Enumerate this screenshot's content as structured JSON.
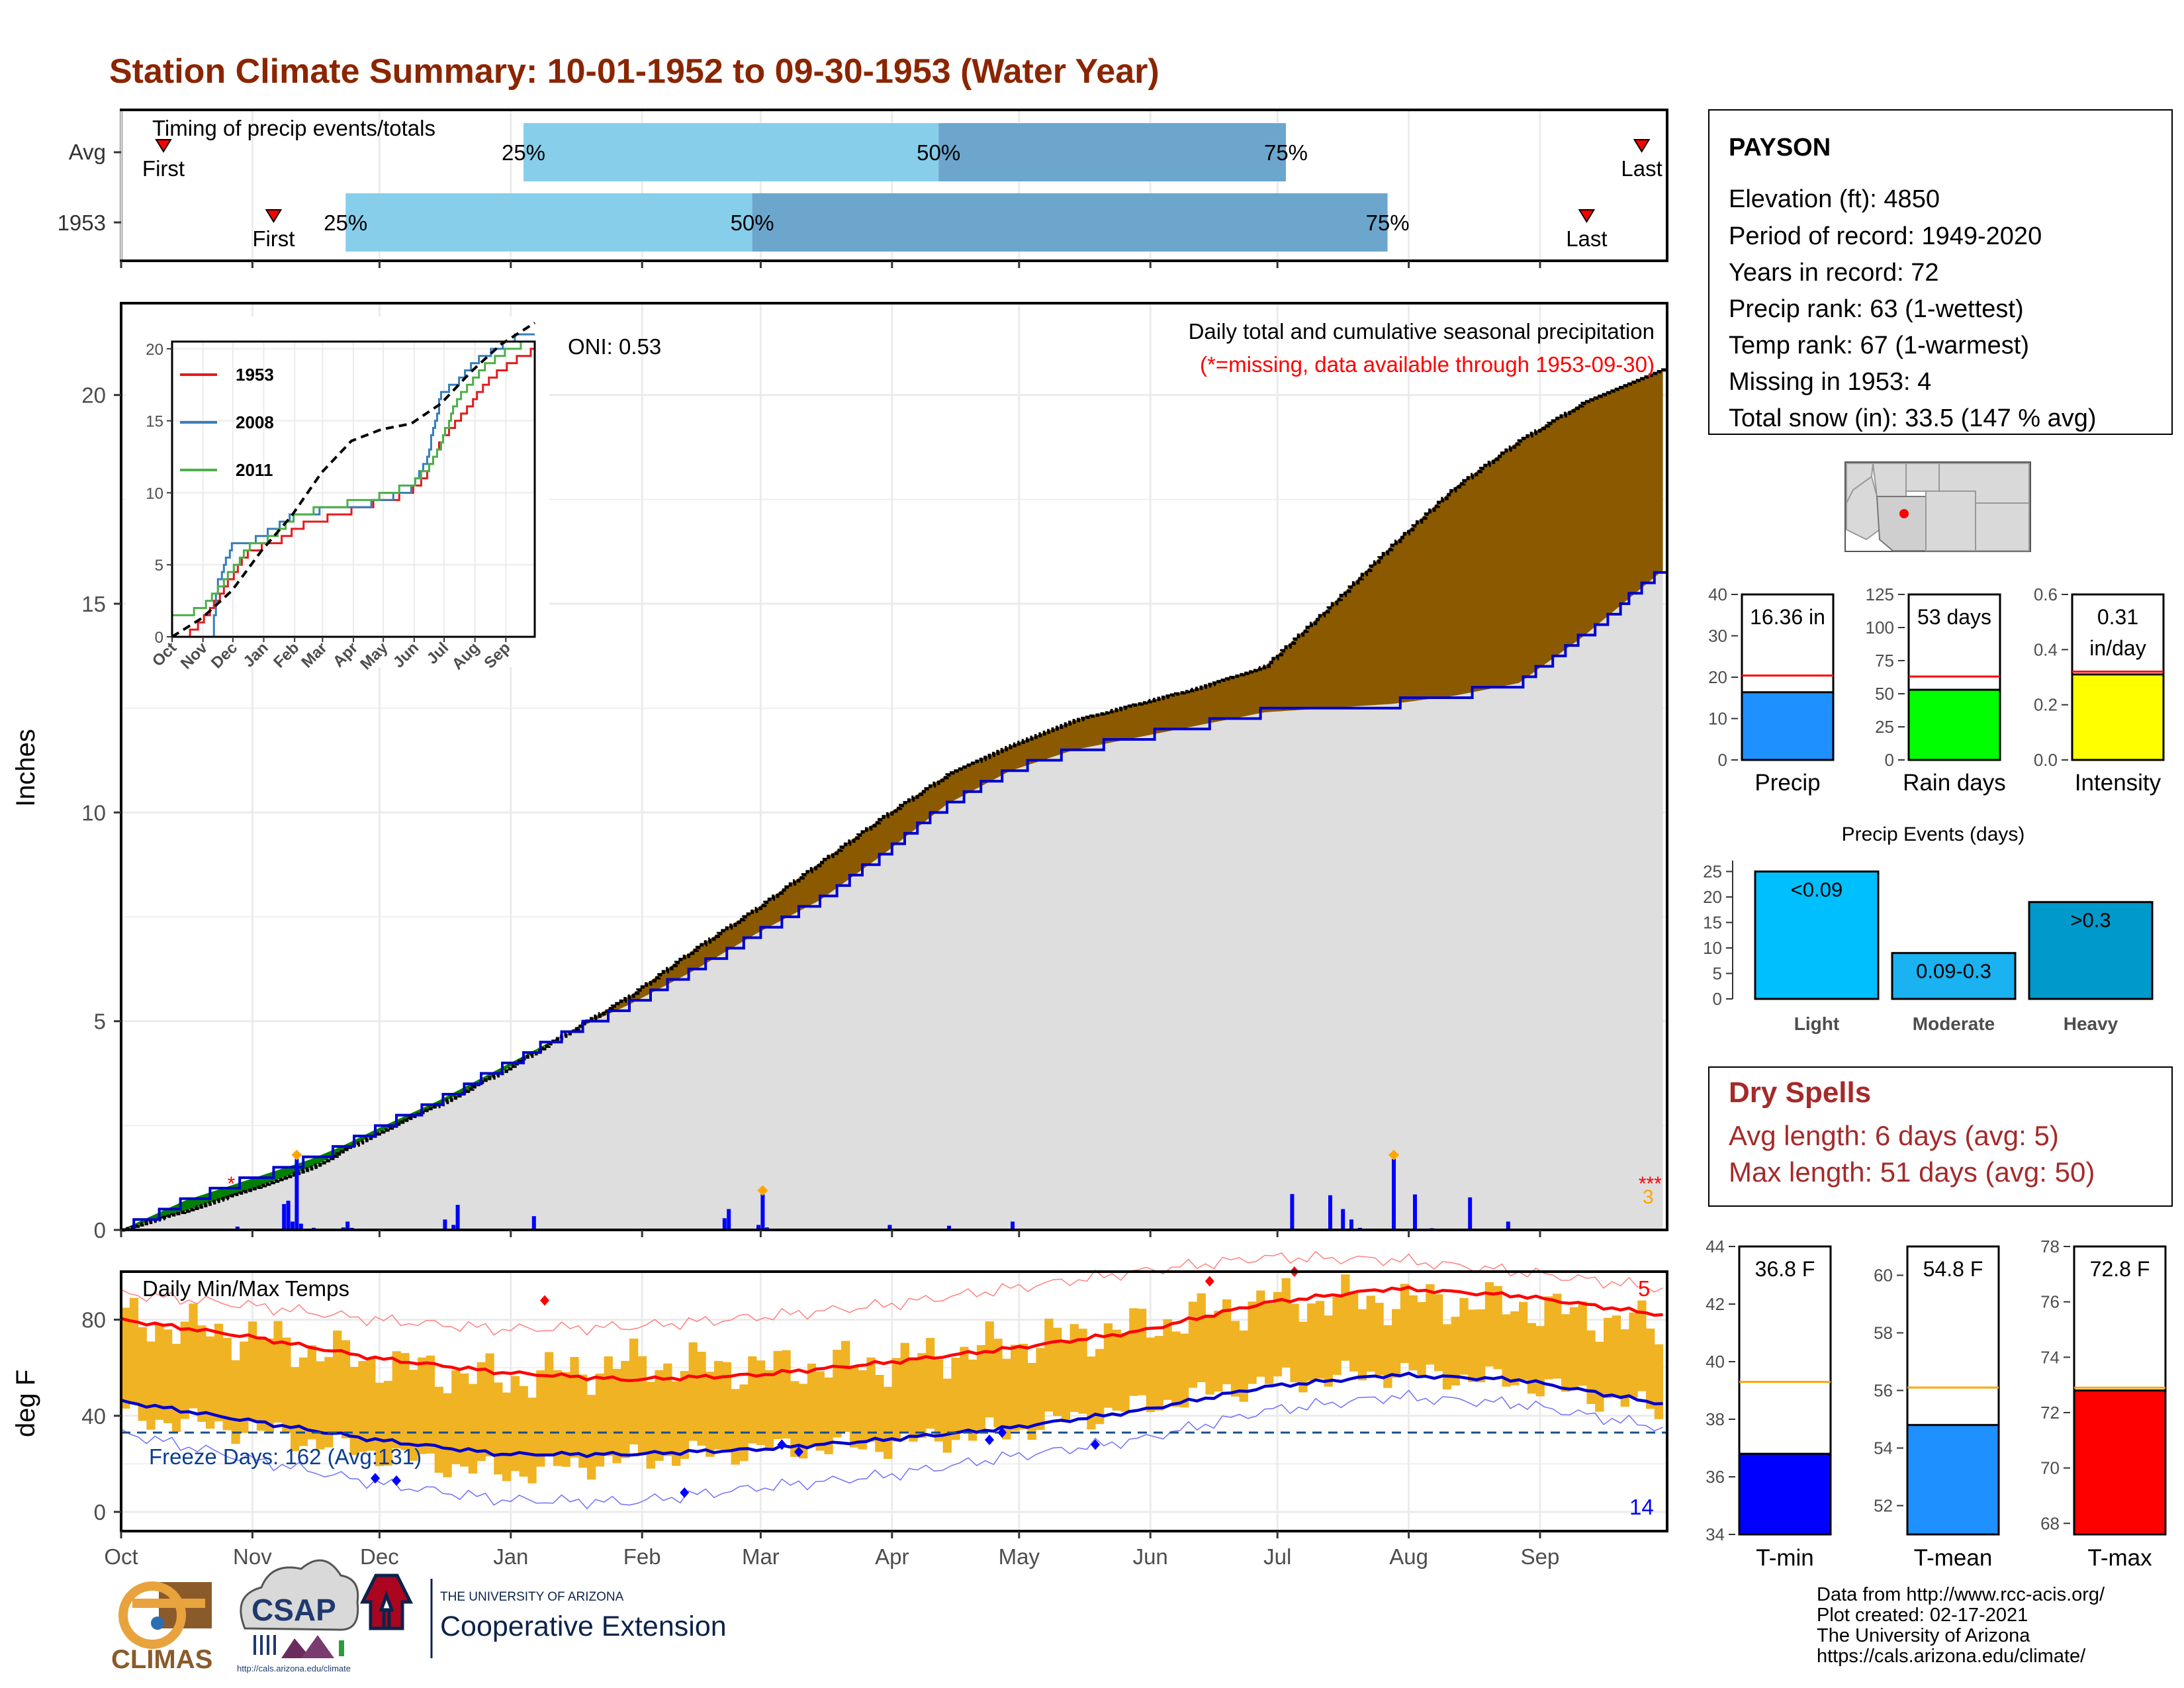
{
  "title": "Station Climate Summary: 10-01-1952 to 09-30-1953 (Water Year)",
  "colors": {
    "title": "#8b2500",
    "light_bar": "#87ceeb",
    "dark_bar": "#6ca6cd",
    "precip_fill": "#8b5a00",
    "ahead_fill": "#008000",
    "avg_fill": "#dedede",
    "daily_bar": "#0000ff",
    "temp_bar": "#f0b323",
    "red_line": "#ff0000",
    "blue_line": "#0000cd",
    "dry_spell": "#a52a2a"
  },
  "timing": {
    "label": "Timing of precip events/totals",
    "rows": [
      {
        "name": "Avg",
        "first_label": "First",
        "last_label": "Last",
        "first_day": 10,
        "last_day": 359,
        "p25_day": 95,
        "p50_day": 193,
        "p75_day": 275,
        "pct_labels": [
          "25%",
          "50%",
          "75%"
        ]
      },
      {
        "name": "1953",
        "first_label": "First",
        "last_label": "Last",
        "first_day": 36,
        "last_day": 346,
        "p25_day": 53,
        "p50_day": 149,
        "p75_day": 299,
        "pct_labels": [
          "25%",
          "50%",
          "75%"
        ]
      }
    ]
  },
  "main_plot": {
    "ylabel": "Inches",
    "annotation_title": "Daily total and cumulative seasonal precipitation",
    "annotation_missing": "(*=missing, data available through 1953-09-30)",
    "oni": "ONI: 0.53",
    "y_ticks": [
      "0",
      "5",
      "10",
      "15",
      "20"
    ],
    "ymax": 22.2,
    "missing_count": "3"
  },
  "x_months": [
    "Oct",
    "Nov",
    "Dec",
    "Jan",
    "Feb",
    "Mar",
    "Apr",
    "May",
    "Jun",
    "Jul",
    "Aug",
    "Sep"
  ],
  "inset": {
    "series": [
      {
        "name": "1953",
        "color": "#e41a1c"
      },
      {
        "name": "2008",
        "color": "#377eb8"
      },
      {
        "name": "2011",
        "color": "#4daf4a"
      }
    ],
    "y_ticks": [
      "0",
      "5",
      "10",
      "15",
      "20"
    ],
    "x_ticks": [
      "Oct",
      "Nov",
      "Dec",
      "Jan",
      "Feb",
      "Mar",
      "Apr",
      "May",
      "Jun",
      "Jul",
      "Aug",
      "Sep"
    ]
  },
  "temp_plot": {
    "label": "Daily Min/Max Temps",
    "ylabel": "deg F",
    "freeze": "Freeze Days: 162 (Avg:131)",
    "y_ticks": [
      "0",
      "40",
      "80"
    ],
    "max_count": "5",
    "min_count": "14"
  },
  "station": {
    "name": "PAYSON",
    "lines": [
      "Elevation (ft): 4850",
      "Period of record: 1949-2020",
      "Years in record: 72",
      "Precip rank: 63 (1-wettest)",
      "Temp rank: 67 (1-warmest)",
      "Missing in 1953: 4",
      "Total snow (in): 33.5 (147 % avg)"
    ]
  },
  "summary_bars": [
    {
      "label": "Precip",
      "value_text": "16.36 in",
      "value": 16.36,
      "avg": 20.4,
      "ymax": 40,
      "ticks": [
        "0",
        "10",
        "20",
        "30",
        "40"
      ],
      "color": "#1e90ff"
    },
    {
      "label": "Rain days",
      "value_text": "53 days",
      "value": 53,
      "avg": 63,
      "ymax": 125,
      "ticks": [
        "0",
        "25",
        "50",
        "75",
        "100",
        "125"
      ],
      "color": "#00ff00"
    },
    {
      "label": "Intensity",
      "value_text": "0.31",
      "value_text2": "in/day",
      "value": 0.31,
      "avg": 0.32,
      "ymax": 0.6,
      "ticks": [
        "0.0",
        "0.2",
        "0.4",
        "0.6"
      ],
      "color": "#ffff00"
    }
  ],
  "events": {
    "title": "Precip Events (days)",
    "ticks": [
      "0",
      "5",
      "10",
      "15",
      "20",
      "25"
    ],
    "bars": [
      {
        "label": "Light",
        "text": "<0.09",
        "value": 25,
        "color": "#00bfff"
      },
      {
        "label": "Moderate",
        "text": "0.09-0.3",
        "value": 9,
        "color": "#1ab2f0"
      },
      {
        "label": "Heavy",
        "text": ">0.3",
        "value": 19,
        "color": "#0099cc"
      }
    ]
  },
  "dry_spells": {
    "title": "Dry Spells",
    "line1": "Avg length: 6 days (avg: 5)",
    "line2": "Max length: 51 days (avg: 50)"
  },
  "temp_bars": [
    {
      "label": "T-min",
      "value_text": "36.8 F",
      "value": 36.8,
      "avg": 39.3,
      "ymin": 34,
      "ymax": 44,
      "ticks": [
        "34",
        "36",
        "38",
        "40",
        "42",
        "44"
      ],
      "color": "#0000ff"
    },
    {
      "label": "T-mean",
      "value_text": "54.8 F",
      "value": 54.8,
      "avg": 56.1,
      "ymin": 51,
      "ymax": 61,
      "ticks": [
        "52",
        "54",
        "56",
        "58",
        "60"
      ],
      "color": "#1e90ff"
    },
    {
      "label": "T-max",
      "value_text": "72.8 F",
      "value": 72.8,
      "avg": 72.9,
      "ymin": 67.6,
      "ymax": 78,
      "ticks": [
        "68",
        "70",
        "72",
        "74",
        "76",
        "78"
      ],
      "color": "#ff0000"
    }
  ],
  "credits": [
    "Data from http://www.rcc-acis.org/",
    "Plot created: 02-17-2021",
    "The University of Arizona",
    "https://cals.arizona.edu/climate/"
  ],
  "logos": {
    "climas": "CLIMAS",
    "csap": "CSAP",
    "csap_url": "http://cals.arizona.edu/climate",
    "ua_small": "THE UNIVERSITY OF ARIZONA",
    "ua_big": "Cooperative Extension"
  },
  "chart_data": [
    {
      "type": "area",
      "title": "Daily total and cumulative seasonal precipitation",
      "ylabel": "Inches",
      "x_unit": "day of water year (0 = Oct 1)",
      "ylim": [
        0,
        22.2
      ],
      "cumulative_1953": {
        "x": [
          0,
          15,
          30,
          45,
          52,
          60,
          75,
          90,
          105,
          120,
          135,
          150,
          165,
          180,
          195,
          210,
          225,
          240,
          255,
          270,
          285,
          300,
          315,
          330,
          345,
          364
        ],
        "y": [
          0,
          0.7,
          1.2,
          1.7,
          2.0,
          2.4,
          3.1,
          3.9,
          4.7,
          5.4,
          6.2,
          7.1,
          7.9,
          9.0,
          10.2,
          11.0,
          11.5,
          11.8,
          12.1,
          12.4,
          12.5,
          12.6,
          12.8,
          13.1,
          14.2,
          15.8
        ]
      },
      "cumulative_avg": {
        "x": [
          0,
          15,
          30,
          45,
          60,
          75,
          90,
          105,
          120,
          135,
          150,
          165,
          180,
          195,
          210,
          225,
          240,
          255,
          270,
          285,
          300,
          315,
          330,
          345,
          364
        ],
        "y": [
          0,
          0.45,
          0.95,
          1.5,
          2.3,
          3.0,
          3.8,
          4.7,
          5.6,
          6.7,
          7.7,
          8.8,
          9.9,
          10.9,
          11.6,
          12.2,
          12.6,
          13.0,
          13.5,
          14.9,
          16.4,
          17.8,
          18.9,
          19.8,
          20.6
        ]
      },
      "daily": [
        [
          27,
          0.08
        ],
        [
          38,
          0.62
        ],
        [
          39,
          0.7
        ],
        [
          40,
          0.2
        ],
        [
          41,
          1.7
        ],
        [
          42,
          0.15
        ],
        [
          45,
          0.05
        ],
        [
          52,
          0.06
        ],
        [
          53,
          0.2
        ],
        [
          54,
          0.05
        ],
        [
          75,
          0.03
        ],
        [
          76,
          0.25
        ],
        [
          78,
          0.12
        ],
        [
          79,
          0.6
        ],
        [
          97,
          0.33
        ],
        [
          142,
          0.28
        ],
        [
          143,
          0.5
        ],
        [
          150,
          0.12
        ],
        [
          151,
          0.85
        ],
        [
          152,
          0.06
        ],
        [
          158,
          0.03
        ],
        [
          181,
          0.12
        ],
        [
          195,
          0.1
        ],
        [
          210,
          0.2
        ],
        [
          276,
          0.86
        ],
        [
          285,
          0.83
        ],
        [
          288,
          0.5
        ],
        [
          290,
          0.25
        ],
        [
          292,
          0.05
        ],
        [
          300,
          1.7
        ],
        [
          305,
          0.85
        ],
        [
          309,
          0.04
        ],
        [
          311,
          0.02
        ],
        [
          318,
          0.78
        ],
        [
          323,
          0.02
        ],
        [
          327,
          0.2
        ]
      ]
    },
    {
      "type": "line",
      "title": "",
      "series": [
        {
          "name": "1953",
          "x": [
            0,
            20,
            30,
            45,
            60,
            75,
            90,
            105,
            115,
            135,
            165,
            180,
            195,
            210,
            225,
            240,
            255,
            270,
            285,
            300,
            315,
            330,
            345,
            364
          ],
          "y": [
            0,
            0.3,
            1.1,
            2.6,
            4.2,
            5.8,
            6.3,
            6.4,
            7.1,
            7.9,
            8.4,
            8.8,
            9.1,
            9.5,
            9.7,
            10.1,
            11.3,
            13.7,
            14.9,
            16.2,
            17.6,
            18.5,
            19.3,
            19.9
          ]
        },
        {
          "name": "2008",
          "x": [
            0,
            40,
            45,
            60,
            75,
            90,
            105,
            120,
            150,
            180,
            210,
            240,
            255,
            270,
            285,
            300,
            315,
            330,
            345,
            364
          ],
          "y": [
            0,
            0.1,
            3.6,
            6.4,
            6.4,
            7.1,
            7.6,
            8.4,
            8.8,
            9.0,
            9.4,
            10.3,
            12.3,
            16.9,
            17.6,
            18.9,
            19.6,
            20.2,
            20.8,
            20.9
          ]
        },
        {
          "name": "2011",
          "x": [
            0,
            15,
            30,
            45,
            60,
            75,
            90,
            105,
            120,
            150,
            180,
            210,
            240,
            255,
            270,
            285,
            300,
            315,
            330,
            345,
            364
          ],
          "y": [
            1.5,
            1.6,
            2.0,
            3.3,
            4.6,
            6.2,
            6.5,
            7.3,
            8.2,
            9.0,
            9.3,
            9.8,
            10.6,
            11.6,
            13.5,
            16.4,
            17.7,
            18.9,
            19.6,
            20.2,
            20.4
          ]
        },
        {
          "name": "Avg",
          "x": [
            0,
            30,
            60,
            90,
            120,
            150,
            180,
            210,
            240,
            270,
            300,
            330,
            364
          ],
          "y": [
            0,
            1.3,
            3.2,
            6.0,
            8.4,
            11.4,
            13.6,
            14.4,
            14.8,
            16.2,
            18.4,
            20.3,
            21.8
          ]
        }
      ],
      "ylim": [
        0,
        20
      ],
      "x_ticks": [
        "Oct",
        "Nov",
        "Dec",
        "Jan",
        "Feb",
        "Mar",
        "Apr",
        "May",
        "Jun",
        "Jul",
        "Aug",
        "Sep"
      ]
    },
    {
      "type": "line",
      "title": "Daily Min/Max Temps",
      "ylabel": "deg F",
      "ylim": [
        -8,
        100
      ],
      "freeze_line": 33,
      "normal_max": {
        "x": [
          0,
          30,
          60,
          90,
          120,
          150,
          180,
          210,
          240,
          270,
          300,
          330,
          364
        ],
        "y": [
          80,
          73,
          64,
          58,
          55,
          57,
          62,
          68,
          75,
          87,
          93,
          90,
          82
        ]
      },
      "normal_min": {
        "x": [
          0,
          30,
          60,
          90,
          120,
          150,
          180,
          210,
          240,
          270,
          300,
          330,
          364
        ],
        "y": [
          46,
          38,
          30,
          24,
          24,
          26,
          30,
          35,
          42,
          52,
          57,
          55,
          45
        ]
      },
      "record_max": {
        "x": [
          0,
          30,
          60,
          90,
          120,
          150,
          180,
          210,
          240,
          270,
          300,
          330,
          364
        ],
        "y": [
          91,
          86,
          80,
          76,
          77,
          81,
          86,
          93,
          100,
          106,
          105,
          100,
          93
        ]
      },
      "record_min": {
        "x": [
          0,
          30,
          60,
          90,
          120,
          150,
          180,
          210,
          240,
          270,
          300,
          330,
          364
        ],
        "y": [
          33,
          22,
          12,
          5,
          4,
          10,
          15,
          23,
          30,
          42,
          48,
          45,
          35
        ]
      },
      "day_max": {
        "x": [
          0,
          30,
          60,
          90,
          120,
          150,
          180,
          210,
          240,
          270,
          300,
          330,
          364
        ],
        "y": [
          80,
          73,
          62,
          55,
          62,
          60,
          62,
          70,
          77,
          88,
          88,
          86,
          76
        ]
      },
      "day_min": {
        "x": [
          0,
          30,
          60,
          90,
          120,
          150,
          180,
          210,
          240,
          270,
          300,
          330,
          364
        ],
        "y": [
          40,
          34,
          24,
          16,
          22,
          26,
          28,
          34,
          44,
          54,
          58,
          54,
          42
        ]
      }
    },
    {
      "type": "bar",
      "title": "",
      "categories": [
        "Precip",
        "Rain days",
        "Intensity"
      ],
      "values": [
        16.36,
        53,
        0.31
      ]
    },
    {
      "type": "bar",
      "title": "Precip Events (days)",
      "categories": [
        "Light",
        "Moderate",
        "Heavy"
      ],
      "values": [
        25,
        9,
        19
      ]
    },
    {
      "type": "bar",
      "title": "",
      "categories": [
        "T-min",
        "T-mean",
        "T-max"
      ],
      "values": [
        36.8,
        54.8,
        72.8
      ]
    }
  ]
}
